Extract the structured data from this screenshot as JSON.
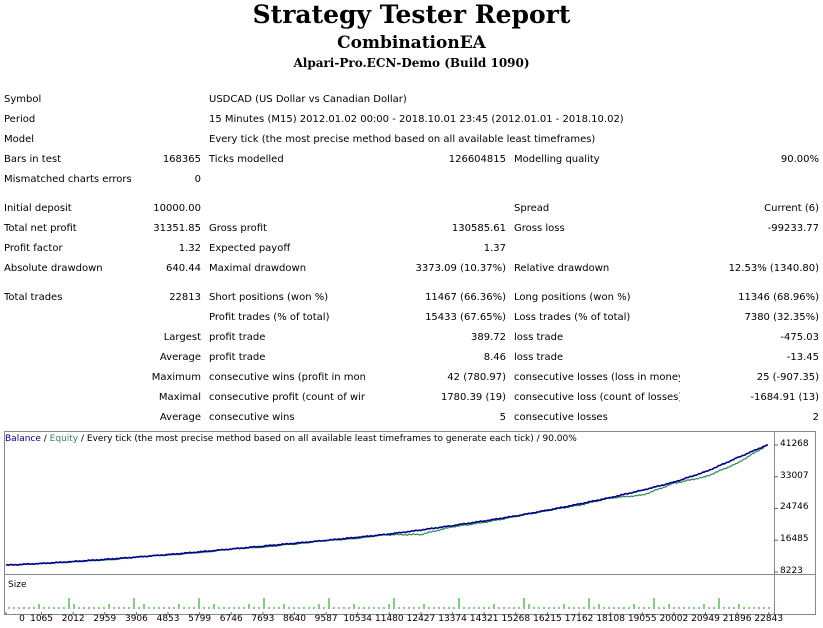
{
  "header": {
    "title": "Strategy Tester Report",
    "subtitle": "CombinationEA",
    "server": "Alpari-Pro.ECN-Demo (Build 1090)"
  },
  "info": {
    "symbol_label": "Symbol",
    "symbol_value": "USDCAD (US Dollar vs Canadian Dollar)",
    "period_label": "Period",
    "period_value": "15 Minutes (M15) 2012.01.02 00:00 - 2018.10.01 23:45 (2012.01.01 - 2018.10.02)",
    "model_label": "Model",
    "model_value": "Every tick (the most precise method based on all available least timeframes)",
    "bars_label": "Bars in test",
    "bars_value": "168365",
    "ticks_label": "Ticks modelled",
    "ticks_value": "126604815",
    "quality_label": "Modelling quality",
    "quality_value": "90.00%",
    "mismatch_label": "Mismatched charts errors",
    "mismatch_value": "0"
  },
  "results": {
    "initial_deposit_label": "Initial deposit",
    "initial_deposit_value": "10000.00",
    "spread_label": "Spread",
    "spread_value": "Current (6)",
    "net_profit_label": "Total net profit",
    "net_profit_value": "31351.85",
    "gross_profit_label": "Gross profit",
    "gross_profit_value": "130585.61",
    "gross_loss_label": "Gross loss",
    "gross_loss_value": "-99233.77",
    "profit_factor_label": "Profit factor",
    "profit_factor_value": "1.32",
    "expected_payoff_label": "Expected payoff",
    "expected_payoff_value": "1.37",
    "abs_dd_label": "Absolute drawdown",
    "abs_dd_value": "640.44",
    "max_dd_label": "Maximal drawdown",
    "max_dd_value": "3373.09 (10.37%)",
    "rel_dd_label": "Relative drawdown",
    "rel_dd_value": "12.53% (1340.80)"
  },
  "trades": {
    "total_label": "Total trades",
    "total_value": "22813",
    "short_label": "Short positions (won %)",
    "short_value": "11467 (66.36%)",
    "long_label": "Long positions (won %)",
    "long_value": "11346 (68.96%)",
    "profit_trades_label": "Profit trades (% of total)",
    "profit_trades_value": "15433 (67.65%)",
    "loss_trades_label": "Loss trades (% of total)",
    "loss_trades_value": "7380 (32.35%)",
    "largest_label": "Largest",
    "largest_profit_label": "profit trade",
    "largest_profit_value": "389.72",
    "largest_loss_label": "loss trade",
    "largest_loss_value": "-475.03",
    "average_label": "Average",
    "average_profit_label": "profit trade",
    "average_profit_value": "8.46",
    "average_loss_label": "loss trade",
    "average_loss_value": "-13.45",
    "maximum_label": "Maximum",
    "max_cons_wins_label": "consecutive wins (profit in money)",
    "max_cons_wins_value": "42 (780.97)",
    "max_cons_losses_label": "consecutive losses (loss in money)",
    "max_cons_losses_value": "25 (-907.35)",
    "maximal_label": "Maximal",
    "maximal_profit_label": "consecutive profit (count of wins)",
    "maximal_profit_value": "1780.39 (19)",
    "maximal_loss_label": "consecutive loss (count of losses)",
    "maximal_loss_value": "-1684.91 (13)",
    "average2_label": "Average",
    "avg_cons_wins_label": "consecutive wins",
    "avg_cons_wins_value": "5",
    "avg_cons_losses_label": "consecutive losses",
    "avg_cons_losses_value": "2"
  },
  "chart_legend": {
    "balance": "Balance",
    "sep1": " / ",
    "equity": "Equity",
    "rest": " / Every tick (the most precise method based on all available least timeframes to generate each tick) / 90.00%"
  },
  "colors": {
    "balance": "#00008b",
    "equity": "#2e8b57",
    "size": "#00a000"
  },
  "chart_data": {
    "type": "line",
    "title": "",
    "size_label": "Size",
    "ylim": [
      8223,
      41268
    ],
    "y_ticks": [
      "41268",
      "33007",
      "24746",
      "16485",
      "8223"
    ],
    "y_tick_values": [
      41268,
      33007,
      24746,
      16485,
      8223
    ],
    "x_ticks": [
      "0",
      "1065",
      "2012",
      "2959",
      "3906",
      "4853",
      "5799",
      "6746",
      "7693",
      "8640",
      "9587",
      "10534",
      "11480",
      "12427",
      "13374",
      "14321",
      "15268",
      "16215",
      "17162",
      "18108",
      "19055",
      "20002",
      "20949",
      "21896",
      "22843"
    ],
    "xlim": [
      0,
      23000
    ],
    "series": [
      {
        "name": "Balance",
        "x": [
          0,
          1065,
          2012,
          2959,
          3906,
          4853,
          5799,
          6746,
          7693,
          8640,
          9587,
          10534,
          11480,
          12427,
          13374,
          14321,
          15268,
          16215,
          17162,
          18108,
          19055,
          20002,
          20949,
          21896,
          22813
        ],
        "values": [
          10000,
          10450,
          10950,
          11500,
          12100,
          12750,
          13450,
          14200,
          14950,
          15700,
          16450,
          17250,
          18100,
          19150,
          20300,
          21500,
          22800,
          24300,
          25900,
          27600,
          29500,
          31600,
          34300,
          37900,
          41351
        ]
      },
      {
        "name": "Equity",
        "x": [
          0,
          2959,
          5799,
          8640,
          11480,
          12427,
          13374,
          14321,
          15268,
          16215,
          17162,
          18108,
          19055,
          20002,
          20949,
          21896,
          22813
        ],
        "values": [
          10000,
          11400,
          13350,
          15500,
          17900,
          18000,
          20000,
          21100,
          22700,
          24200,
          25600,
          27500,
          28200,
          31300,
          33000,
          36500,
          41300
        ]
      }
    ]
  }
}
